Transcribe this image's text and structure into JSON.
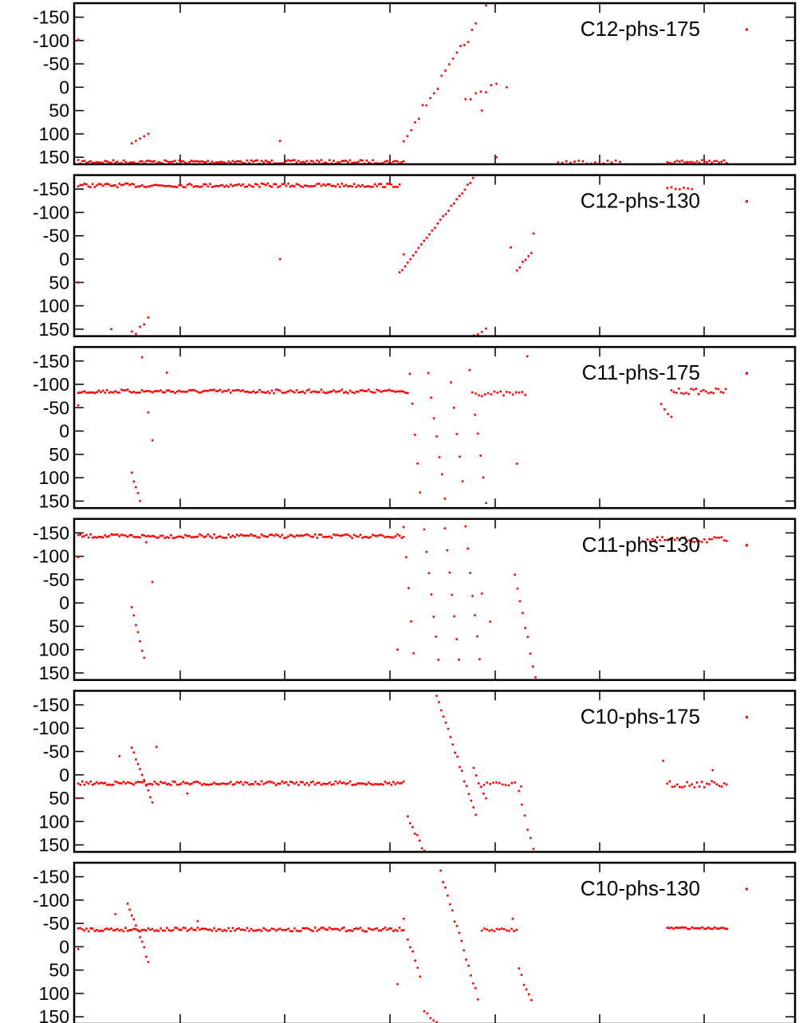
{
  "chart_data": [
    {
      "type": "scatter",
      "title": "",
      "xlabel": "",
      "ylabel": "",
      "ylim": [
        165,
        -180
      ],
      "xlim": [
        0,
        350
      ],
      "x_ticks": [],
      "y_ticks": [
        -150,
        -100,
        -50,
        0,
        50,
        100,
        150
      ],
      "grid": false,
      "legend": "top-right",
      "series": [
        {
          "name": "C12-phs-175",
          "color": "#ff0000",
          "segments": [
            {
              "x0": 2,
              "x1": 160,
              "base": 160,
              "noise": 4,
              "step": 1
            },
            {
              "x0": 235,
              "x1": 266,
              "base": 160,
              "noise": 4,
              "step": 2
            },
            {
              "x0": 288,
              "x1": 317,
              "base": 160,
              "noise": 4,
              "step": 1.2
            }
          ],
          "lines": [
            {
              "x0": 160,
              "y0": 110,
              "x1": 195,
              "y1": -130,
              "step": 1.8,
              "jitter": 18
            },
            {
              "x0": 190,
              "y0": 30,
              "x1": 205,
              "y1": -10,
              "step": 2.5,
              "jitter": 15
            }
          ],
          "points": [
            [
              2,
              -102
            ],
            [
              28,
              120
            ],
            [
              30,
              115
            ],
            [
              32,
              110
            ],
            [
              34,
              105
            ],
            [
              36,
              100
            ],
            [
              100,
              115
            ],
            [
              200,
              -175
            ],
            [
              210,
              0
            ],
            [
              198,
              50
            ],
            [
              205,
              150
            ]
          ]
        },
        {
          "name": "C12-phs-130",
          "color": "#ff0000",
          "segments": [
            {
              "x0": 2,
              "x1": 158,
              "base": -158,
              "noise": 4,
              "step": 1
            },
            {
              "x0": 288,
              "x1": 300,
              "base": -150,
              "noise": 4,
              "step": 2
            },
            {
              "x0": 290,
              "x1": 317,
              "base": 175,
              "noise": 2,
              "step": 1.5
            }
          ],
          "lines": [
            {
              "x0": 158,
              "y0": 30,
              "x1": 195,
              "y1": -180,
              "step": 1.3,
              "jitter": 4
            },
            {
              "x0": 190,
              "y0": 175,
              "x1": 200,
              "y1": 150,
              "step": 2,
              "jitter": 4
            },
            {
              "x0": 215,
              "y0": 20,
              "x1": 222,
              "y1": -10,
              "step": 1.5,
              "jitter": 12
            }
          ],
          "points": [
            [
              2,
              50
            ],
            [
              18,
              150
            ],
            [
              28,
              155
            ],
            [
              30,
              160
            ],
            [
              32,
              145
            ],
            [
              34,
              140
            ],
            [
              36,
              125
            ],
            [
              100,
              0
            ],
            [
              160,
              -10
            ],
            [
              223,
              -55
            ],
            [
              212,
              -25
            ]
          ]
        },
        {
          "name": "C11-phs-175",
          "color": "#ff0000",
          "segments": [
            {
              "x0": 2,
              "x1": 162,
              "base": -85,
              "noise": 4,
              "step": 1
            },
            {
              "x0": 195,
              "x1": 220,
              "base": -80,
              "noise": 5,
              "step": 1.5
            },
            {
              "x0": 290,
              "x1": 317,
              "base": -85,
              "noise": 6,
              "step": 1.2
            }
          ],
          "lines": [
            {
              "x0": 163,
              "y0": -120,
              "x1": 168,
              "y1": 130,
              "step": 1.2,
              "jitter": 12
            },
            {
              "x0": 172,
              "y0": -120,
              "x1": 180,
              "y1": 140,
              "step": 1.3,
              "jitter": 12
            },
            {
              "x0": 183,
              "y0": -100,
              "x1": 190,
              "y1": 160,
              "step": 1.3,
              "jitter": 12
            },
            {
              "x0": 192,
              "y0": -130,
              "x1": 200,
              "y1": 150,
              "step": 1.3,
              "jitter": 12
            },
            {
              "x0": 28,
              "y0": 90,
              "x1": 33,
              "y1": 165,
              "step": 1,
              "jitter": 6
            },
            {
              "x0": 285,
              "y0": -55,
              "x1": 290,
              "y1": -30,
              "step": 1.5,
              "jitter": 6
            }
          ],
          "points": [
            [
              2,
              -55
            ],
            [
              33,
              -158
            ],
            [
              36,
              -40
            ],
            [
              38,
              20
            ],
            [
              45,
              -125
            ],
            [
              215,
              70
            ],
            [
              220,
              -160
            ]
          ]
        },
        {
          "name": "C11-phs-130",
          "color": "#ff0000",
          "segments": [
            {
              "x0": 2,
              "x1": 160,
              "base": -143,
              "noise": 4,
              "step": 1
            },
            {
              "x0": 276,
              "x1": 317,
              "base": -135,
              "noise": 6,
              "step": 1.2
            }
          ],
          "lines": [
            {
              "x0": 160,
              "y0": -160,
              "x1": 166,
              "y1": 170,
              "step": 1.2,
              "jitter": 8
            },
            {
              "x0": 170,
              "y0": -160,
              "x1": 178,
              "y1": 170,
              "step": 1.2,
              "jitter": 8
            },
            {
              "x0": 180,
              "y0": -160,
              "x1": 188,
              "y1": 170,
              "step": 1.2,
              "jitter": 8
            },
            {
              "x0": 190,
              "y0": -160,
              "x1": 198,
              "y1": 170,
              "step": 1.2,
              "jitter": 8
            },
            {
              "x0": 214,
              "y0": -60,
              "x1": 224,
              "y1": 160,
              "step": 1.2,
              "jitter": 10
            },
            {
              "x0": 28,
              "y0": 10,
              "x1": 34,
              "y1": 120,
              "step": 1,
              "jitter": 6
            }
          ],
          "points": [
            [
              2,
              -98
            ],
            [
              35,
              -130
            ],
            [
              38,
              -45
            ],
            [
              157,
              100
            ],
            [
              198,
              -20
            ],
            [
              202,
              40
            ]
          ]
        },
        {
          "name": "C10-phs-175",
          "color": "#ff0000",
          "segments": [
            {
              "x0": 2,
              "x1": 160,
              "base": 18,
              "noise": 4,
              "step": 1
            },
            {
              "x0": 199,
              "x1": 215,
              "base": 20,
              "noise": 4,
              "step": 1.5
            },
            {
              "x0": 288,
              "x1": 317,
              "base": 20,
              "noise": 7,
              "step": 1.2
            }
          ],
          "lines": [
            {
              "x0": 28,
              "y0": -60,
              "x1": 38,
              "y1": 60,
              "step": 1,
              "jitter": 6
            },
            {
              "x0": 162,
              "y0": 90,
              "x1": 170,
              "y1": 165,
              "step": 1.2,
              "jitter": 10
            },
            {
              "x0": 176,
              "y0": -170,
              "x1": 195,
              "y1": 85,
              "step": 1.1,
              "jitter": 10
            },
            {
              "x0": 194,
              "y0": -10,
              "x1": 200,
              "y1": 50,
              "step": 1.2,
              "jitter": 10
            },
            {
              "x0": 216,
              "y0": 40,
              "x1": 223,
              "y1": 160,
              "step": 1.5,
              "jitter": 12
            }
          ],
          "points": [
            [
              2,
              50
            ],
            [
              22,
              -40
            ],
            [
              40,
              -60
            ],
            [
              55,
              40
            ],
            [
              217,
              25
            ],
            [
              286,
              -30
            ],
            [
              310,
              -10
            ]
          ]
        },
        {
          "name": "C10-phs-130",
          "color": "#ff0000",
          "segments": [
            {
              "x0": 2,
              "x1": 160,
              "base": -37,
              "noise": 4,
              "step": 1
            },
            {
              "x0": 198,
              "x1": 215,
              "base": -36,
              "noise": 3,
              "step": 1.2
            },
            {
              "x0": 288,
              "x1": 317,
              "base": -40,
              "noise": 2,
              "step": 1
            }
          ],
          "lines": [
            {
              "x0": 26,
              "y0": -95,
              "x1": 36,
              "y1": 30,
              "step": 1,
              "jitter": 8
            },
            {
              "x0": 162,
              "y0": -20,
              "x1": 168,
              "y1": 60,
              "step": 1.2,
              "jitter": 12
            },
            {
              "x0": 170,
              "y0": 140,
              "x1": 176,
              "y1": 160,
              "step": 1.5,
              "jitter": 6
            },
            {
              "x0": 178,
              "y0": -160,
              "x1": 196,
              "y1": 110,
              "step": 1.1,
              "jitter": 10
            },
            {
              "x0": 216,
              "y0": 50,
              "x1": 222,
              "y1": 120,
              "step": 1.2,
              "jitter": 12
            }
          ],
          "points": [
            [
              2,
              5
            ],
            [
              20,
              -70
            ],
            [
              60,
              -55
            ],
            [
              157,
              80
            ],
            [
              160,
              -60
            ],
            [
              213,
              -60
            ]
          ]
        }
      ]
    }
  ]
}
